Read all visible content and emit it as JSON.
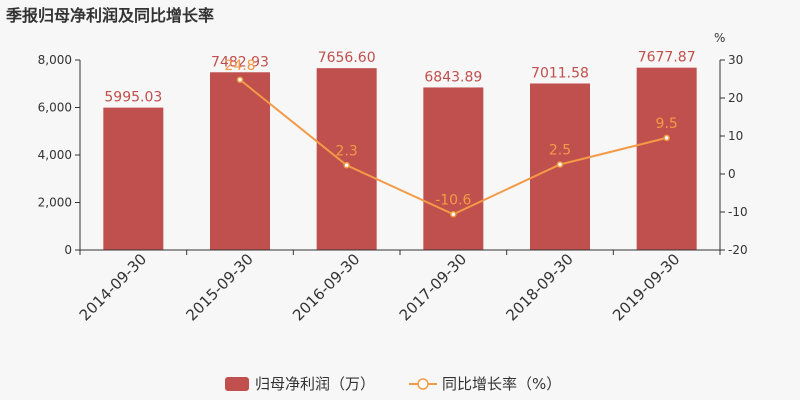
{
  "chart_data": {
    "type": "bar",
    "title": "季报归母净利润及同比增长率",
    "categories": [
      "2014-09-30",
      "2015-09-30",
      "2016-09-30",
      "2017-09-30",
      "2018-09-30",
      "2019-09-30"
    ],
    "series": [
      {
        "name": "归母净利润（万）",
        "type": "bar",
        "axis": "left",
        "color": "#c0504d",
        "values": [
          5995.03,
          7482.93,
          7656.6,
          6843.89,
          7011.58,
          7677.87
        ],
        "labels": [
          "5995.03",
          "7482.93",
          "7656.60",
          "6843.89",
          "7011.58",
          "7677.87"
        ]
      },
      {
        "name": "同比增长率（%）",
        "type": "line",
        "axis": "right",
        "color": "#f39a46",
        "values": [
          null,
          24.8,
          2.3,
          -10.6,
          2.5,
          9.5
        ],
        "labels": [
          "",
          "24.8",
          "2.3",
          "-10.6",
          "2.5",
          "9.5"
        ]
      }
    ],
    "y_left": {
      "ylim": [
        0,
        8000
      ],
      "ticks": [
        0,
        2000,
        4000,
        6000,
        8000
      ],
      "tick_labels": [
        "0",
        "2,000",
        "4,000",
        "6,000",
        "8,000"
      ]
    },
    "y_right": {
      "unit": "%",
      "ylim": [
        -20,
        30
      ],
      "ticks": [
        -20,
        -10,
        0,
        10,
        20,
        30
      ],
      "tick_labels": [
        "-20",
        "-10",
        "0",
        "10",
        "20",
        "30"
      ]
    },
    "grid": false,
    "legend": "bottom-center"
  }
}
